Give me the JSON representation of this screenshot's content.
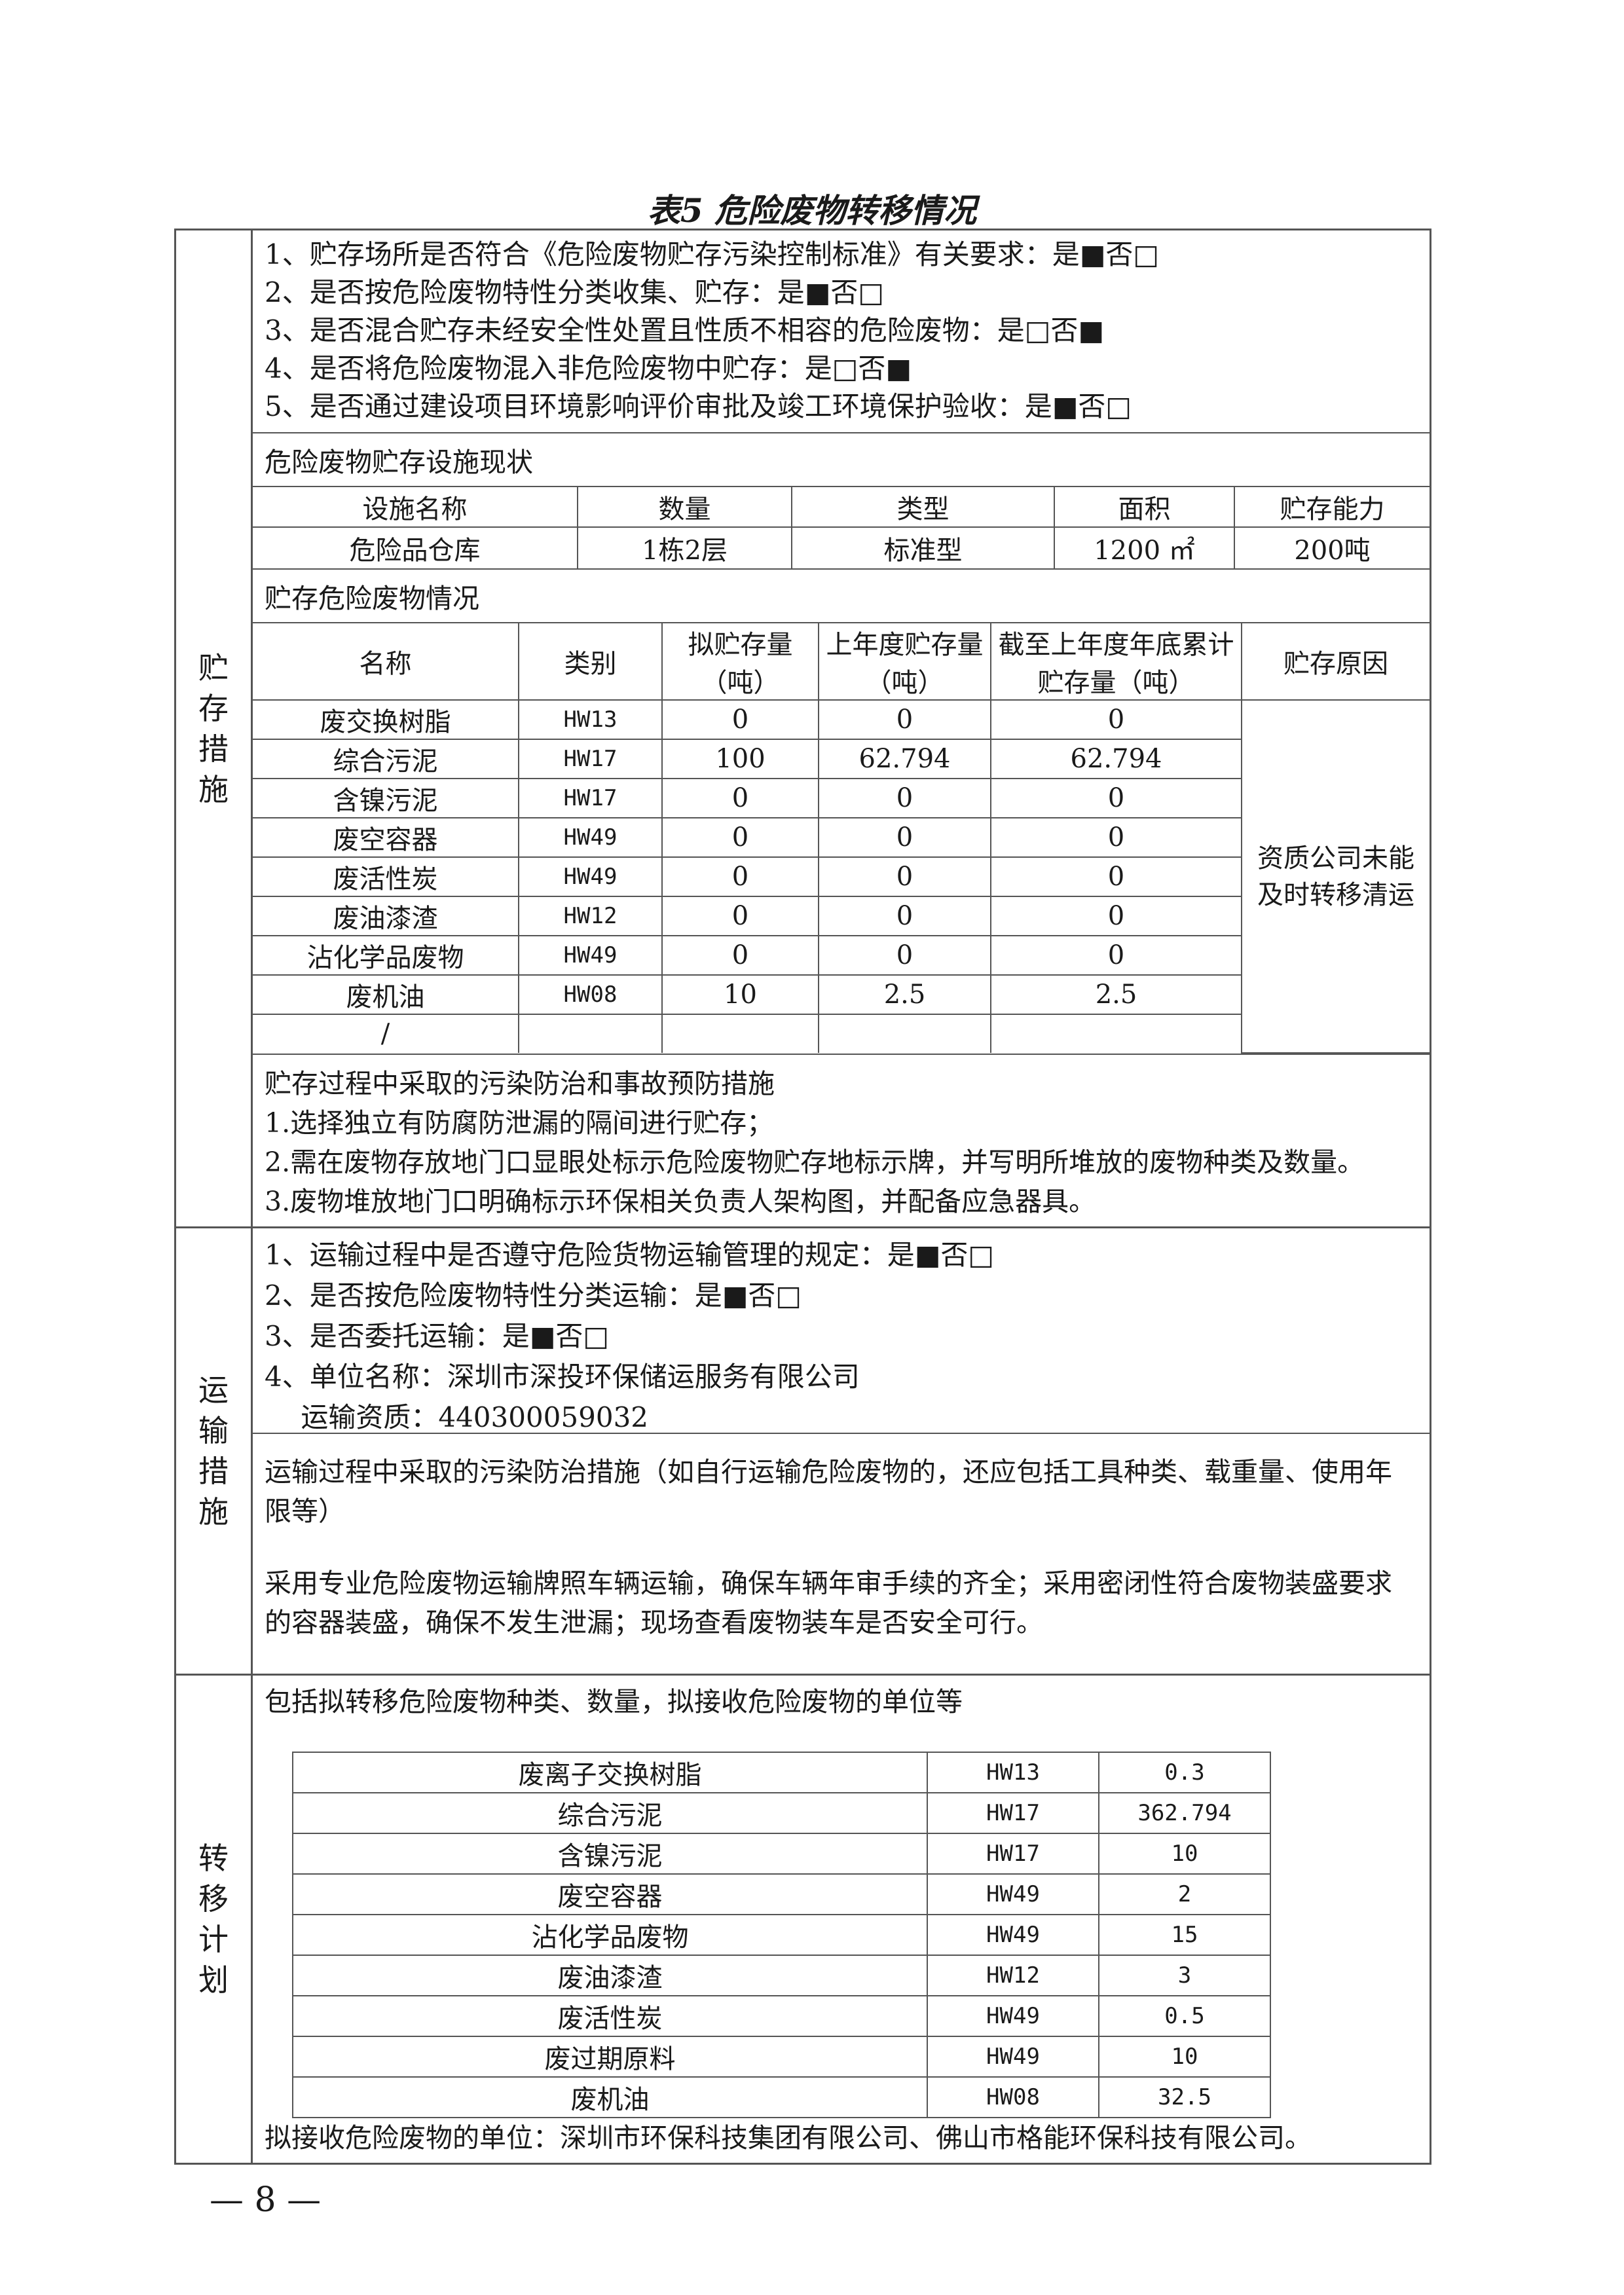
{
  "title": "表5 危险废物转移情况",
  "storage": {
    "section_label": [
      "贮",
      "存",
      "措",
      "施"
    ],
    "checks": [
      "1、贮存场所是否符合《危险废物贮存污染控制标准》有关要求：是■否□",
      "2、是否按危险废物特性分类收集、贮存：是■否□",
      "3、是否混合贮存未经安全性处置且性质不相容的危险废物：是□否■",
      "4、是否将危险废物混入非危险废物中贮存：是□否■",
      "5、是否通过建设项目环境影响评价审批及竣工环境保护验收：是■否□"
    ],
    "facility_label": "危险废物贮存设施现状",
    "facility_headers": [
      "设施名称",
      "数量",
      "类型",
      "面积",
      "贮存能力"
    ],
    "facility_row": [
      "危险品仓库",
      "1栋2层",
      "标准型",
      "1200 ㎡",
      "200吨"
    ],
    "waste_label": "贮存危险废物情况",
    "waste_headers": [
      "名称",
      "类别",
      "拟贮存量（吨）",
      "上年度贮存量（吨）",
      "截至上年度年底累计贮存量（吨）",
      "贮存原因"
    ],
    "waste_rows": [
      [
        "废交换树脂",
        "HW13",
        "0",
        "0",
        "0"
      ],
      [
        "综合污泥",
        "HW17",
        "100",
        "62.794",
        "62.794"
      ],
      [
        "含镍污泥",
        "HW17",
        "0",
        "0",
        "0"
      ],
      [
        "废空容器",
        "HW49",
        "0",
        "0",
        "0"
      ],
      [
        "废活性炭",
        "HW49",
        "0",
        "0",
        "0"
      ],
      [
        "废油漆渣",
        "HW12",
        "0",
        "0",
        "0"
      ],
      [
        "沾化学品废物",
        "HW49",
        "0",
        "0",
        "0"
      ],
      [
        "废机油",
        "HW08",
        "10",
        "2.5",
        "2.5"
      ],
      [
        "/",
        "",
        "",
        "",
        ""
      ]
    ],
    "reason": "资质公司未能及时转移清运",
    "measures_title": "贮存过程中采取的污染防治和事故预防措施",
    "measures": [
      "1.选择独立有防腐防泄漏的隔间进行贮存；",
      "2.需在废物存放地门口显眼处标示危险废物贮存地标示牌，并写明所堆放的废物种类及数量。",
      "3.废物堆放地门口明确标示环保相关负责人架构图，并配备应急器具。"
    ]
  },
  "transport": {
    "section_label": [
      "运",
      "输",
      "措",
      "施"
    ],
    "checks": [
      "1、运输过程中是否遵守危险货物运输管理的规定：是■否□",
      "2、是否按危险废物特性分类运输：是■否□",
      "3、是否委托运输：是■否□",
      "4、单位名称：深圳市深投环保储运服务有限公司",
      "　 运输资质：440300059032"
    ],
    "measures_title": "运输过程中采取的污染防治措施（如自行运输危险废物的，还应包括工具种类、载重量、使用年限等）",
    "measures": "采用专业危险废物运输牌照车辆运输，确保车辆年审手续的齐全；采用密闭性符合废物装盛要求的容器装盛，确保不发生泄漏；现场查看废物装车是否安全可行。"
  },
  "transfer": {
    "section_label": [
      "转",
      "移",
      "计",
      "划"
    ],
    "intro": "包括拟转移危险废物种类、数量，拟接收危险废物的单位等",
    "rows": [
      [
        "废离子交换树脂",
        "HW13",
        "0.3"
      ],
      [
        "综合污泥",
        "HW17",
        "362.794"
      ],
      [
        "含镍污泥",
        "HW17",
        "10"
      ],
      [
        "废空容器",
        "HW49",
        "2"
      ],
      [
        "沾化学品废物",
        "HW49",
        "15"
      ],
      [
        "废油漆渣",
        "HW12",
        "3"
      ],
      [
        "废活性炭",
        "HW49",
        "0.5"
      ],
      [
        "废过期原料",
        "HW49",
        "10"
      ],
      [
        "废机油",
        "HW08",
        "32.5"
      ]
    ],
    "receivers": "拟接收危险废物的单位：深圳市环保科技集团有限公司、佛山市格能环保科技有限公司。"
  },
  "page_number": "— 8 —"
}
